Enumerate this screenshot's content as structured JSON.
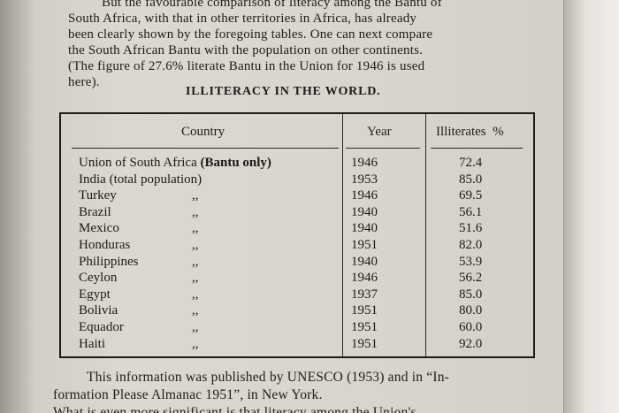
{
  "intro": {
    "line1": "But the favourable comparison of literacy among the Bantu of",
    "line2": "South Africa, with that in other territories in Africa, has already",
    "line3": "been clearly shown by the foregoing tables.  One can next compare",
    "line4": "the South African Bantu with the population on other continents.",
    "line5": "(The figure of 27.6% literate Bantu in the Union for 1946 is used",
    "line6": "here)."
  },
  "title": "ILLITERACY IN THE WORLD.",
  "table": {
    "headers": {
      "country": "Country",
      "year": "Year",
      "illiterates": "Illiterates  %"
    },
    "rows": [
      {
        "country": "Union of South Africa ",
        "country_bold": "(Bantu only)",
        "ditto": "",
        "year": "1946",
        "illiterates": "72.4"
      },
      {
        "country": "India (total population)",
        "country_bold": "",
        "ditto": "",
        "year": "1953",
        "illiterates": "85.0"
      },
      {
        "country": "Turkey",
        "country_bold": "",
        "ditto": ",,",
        "year": "1946",
        "illiterates": "69.5"
      },
      {
        "country": "Brazil",
        "country_bold": "",
        "ditto": ",,",
        "year": "1940",
        "illiterates": "56.1"
      },
      {
        "country": "Mexico",
        "country_bold": "",
        "ditto": ",,",
        "year": "1940",
        "illiterates": "51.6"
      },
      {
        "country": "Honduras",
        "country_bold": "",
        "ditto": ",,",
        "year": "1951",
        "illiterates": "82.0"
      },
      {
        "country": "Philippines",
        "country_bold": "",
        "ditto": ",,",
        "year": "1940",
        "illiterates": "53.9"
      },
      {
        "country": "Ceylon",
        "country_bold": "",
        "ditto": ",,",
        "year": "1946",
        "illiterates": "56.2"
      },
      {
        "country": "Egypt",
        "country_bold": "",
        "ditto": ",,",
        "year": "1937",
        "illiterates": "85.0"
      },
      {
        "country": "Bolivia",
        "country_bold": "",
        "ditto": ",,",
        "year": "1951",
        "illiterates": "80.0"
      },
      {
        "country": "Equador",
        "country_bold": "",
        "ditto": ",,",
        "year": "1951",
        "illiterates": "60.0"
      },
      {
        "country": "Haiti",
        "country_bold": "",
        "ditto": ",,",
        "year": "1951",
        "illiterates": "92.0"
      }
    ]
  },
  "footer": {
    "line1": "This information was published by UNESCO (1953) and in “In-",
    "line2": "formation Please Almanac 1951”, in New York.",
    "line3": "What is even more significant is that literacy among the Union's"
  }
}
